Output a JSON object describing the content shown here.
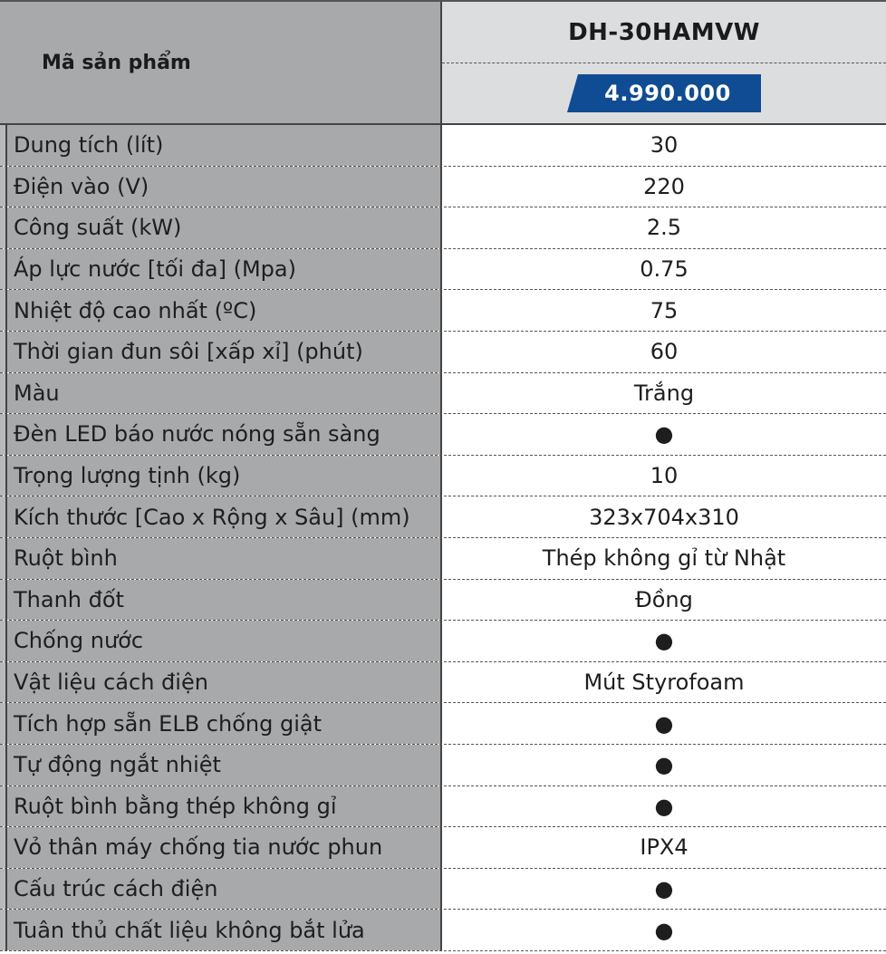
{
  "header": {
    "label": "Mã sản phẩm",
    "model": "DH-30HAMVW",
    "price": "4.990.000"
  },
  "rows": [
    {
      "label": "Dung tích (lít)",
      "value": "30"
    },
    {
      "label": "Điện vào (V)",
      "value": "220"
    },
    {
      "label": "Công suất (kW)",
      "value": "2.5"
    },
    {
      "label": "Áp lực nước [tối đa] (Mpa)",
      "value": "0.75"
    },
    {
      "label": "Nhiệt độ cao nhất (ºC)",
      "value": "75"
    },
    {
      "label": "Thời gian đun sôi [xấp xỉ] (phút)",
      "value": "60"
    },
    {
      "label": "Màu",
      "value": "Trắng"
    },
    {
      "label": "Đèn LED báo nước nóng sẵn sàng",
      "value": "●"
    },
    {
      "label": "Trọng lượng tịnh (kg)",
      "value": "10"
    },
    {
      "label": "Kích thước [Cao x Rộng x Sâu] (mm)",
      "value": "323x704x310"
    },
    {
      "label": "Ruột bình",
      "value": "Thép không gỉ từ Nhật"
    },
    {
      "label": "Thanh đốt",
      "value": "Đồng"
    },
    {
      "label": "Chống nước",
      "value": "●"
    },
    {
      "label": "Vật liệu cách điện",
      "value": "Mút Styrofoam"
    },
    {
      "label": "Tích hợp sẵn ELB chống giật",
      "value": "●"
    },
    {
      "label": "Tự động ngắt nhiệt",
      "value": "●"
    },
    {
      "label": "Ruột bình bằng thép không gỉ",
      "value": "●"
    },
    {
      "label": "Vỏ thân máy chống tia nước phun",
      "value": "IPX4"
    },
    {
      "label": "Cấu trúc cách điện",
      "value": "●"
    },
    {
      "label": "Tuân thủ chất liệu không bắt lửa",
      "value": "●"
    }
  ],
  "colors": {
    "label_bg": "#a8a9ab",
    "header_model_bg": "#dcdddf",
    "price_badge": "#0f4c93"
  }
}
